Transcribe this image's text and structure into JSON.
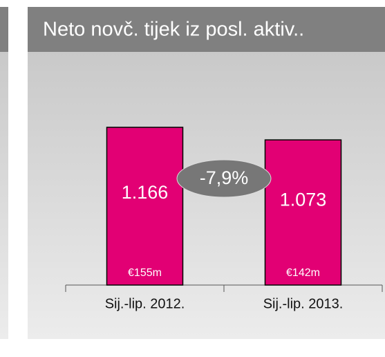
{
  "chart_data": {
    "type": "bar",
    "title": "Neto novč. tijek iz posl. aktiv..",
    "categories": [
      "Sij.-lip. 2012.",
      "Sij.-lip. 2013."
    ],
    "values": [
      1166,
      1073
    ],
    "value_labels": [
      "1.166",
      "1.073"
    ],
    "bar_notes": [
      "€155m",
      "€142m"
    ],
    "change_label": "-7,9%",
    "color": "#e20074",
    "ylim": [
      0,
      1300
    ]
  }
}
